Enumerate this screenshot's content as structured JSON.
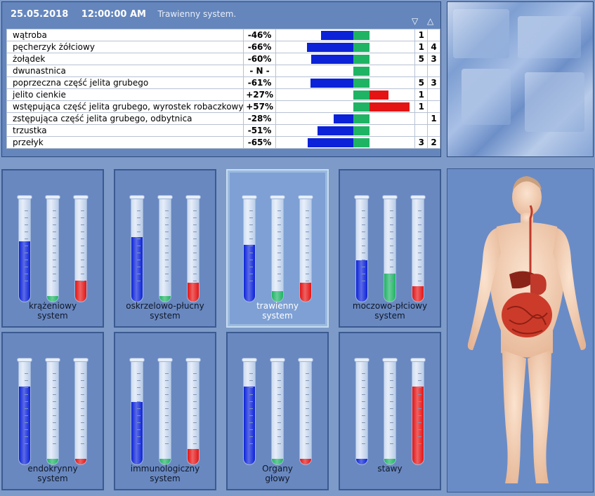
{
  "header": {
    "date": "25.05.2018",
    "time": "12:00:00 AM",
    "system": "Trawienny system."
  },
  "arrows": {
    "down": "▽",
    "up": "△"
  },
  "colors": {
    "blue": "#0b22d8",
    "green": "#1fb464",
    "red": "#e41414"
  },
  "rows": [
    {
      "name": "wątroba",
      "pct": "-46%",
      "value": -46,
      "n1": "1",
      "n2": ""
    },
    {
      "name": "pęcherzyk żółciowy",
      "pct": "-66%",
      "value": -66,
      "n1": "1",
      "n2": "4"
    },
    {
      "name": "żołądek",
      "pct": "-60%",
      "value": -60,
      "n1": "5",
      "n2": "3"
    },
    {
      "name": "dwunastnica",
      "pct": "- N -",
      "value": 0,
      "n1": "",
      "n2": ""
    },
    {
      "name": "poprzeczna część jelita grubego",
      "pct": "-61%",
      "value": -61,
      "n1": "5",
      "n2": "3"
    },
    {
      "name": "jelito cienkie",
      "pct": "+27%",
      "value": 27,
      "n1": "1",
      "n2": ""
    },
    {
      "name": "wstępująca część jelita grubego, wyrostek robaczkowy",
      "pct": "+57%",
      "value": 57,
      "n1": "1",
      "n2": ""
    },
    {
      "name": "zstępująca część jelita grubego, odbytnica",
      "pct": "-28%",
      "value": -28,
      "n1": "",
      "n2": "1"
    },
    {
      "name": "trzustka",
      "pct": "-51%",
      "value": -51,
      "n1": "",
      "n2": ""
    },
    {
      "name": "przełyk",
      "pct": "-65%",
      "value": -65,
      "n1": "3",
      "n2": "2"
    }
  ],
  "systems": [
    {
      "label1": "krążeniowy",
      "label2": "system",
      "levels": [
        0.58,
        0.0,
        0.2
      ],
      "selected": false
    },
    {
      "label1": "oskrzelowo-płucny",
      "label2": "system",
      "levels": [
        0.62,
        0.0,
        0.18
      ],
      "selected": false
    },
    {
      "label1": "trawienny",
      "label2": "system",
      "levels": [
        0.55,
        0.1,
        0.18
      ],
      "selected": true
    },
    {
      "label1": "moczowo-płciowy",
      "label2": "system",
      "levels": [
        0.4,
        0.27,
        0.15
      ],
      "selected": false
    },
    {
      "label1": "endokrynny",
      "label2": "system",
      "levels": [
        0.75,
        0.0,
        0.0
      ],
      "selected": false
    },
    {
      "label1": "immunologiczny",
      "label2": "system",
      "levels": [
        0.6,
        0.0,
        0.15
      ],
      "selected": false
    },
    {
      "label1": "Organy",
      "label2": "głowy",
      "levels": [
        0.75,
        0.0,
        0.0
      ],
      "selected": false
    },
    {
      "label1": "stawy",
      "label2": "",
      "levels": [
        0.0,
        0.0,
        0.75
      ],
      "selected": false
    }
  ]
}
